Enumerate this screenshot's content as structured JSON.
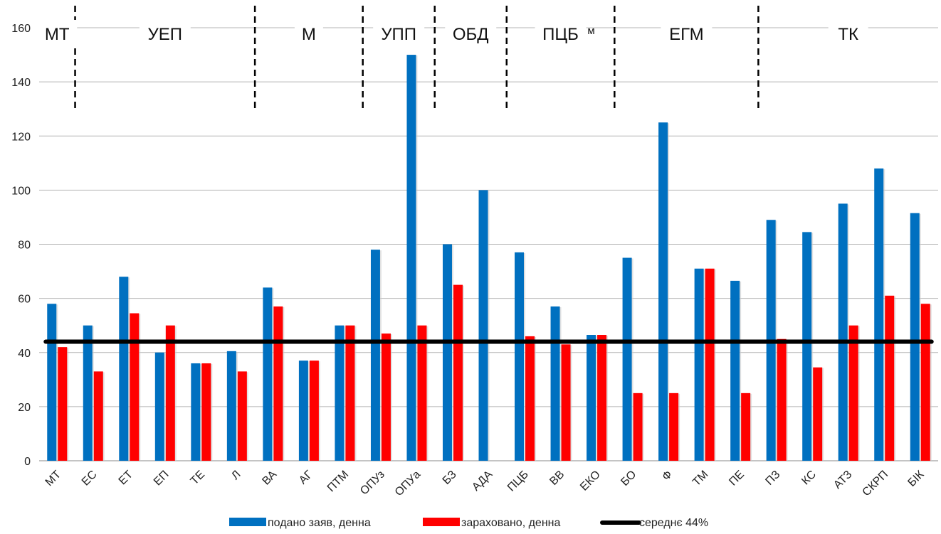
{
  "chart_data": {
    "type": "bar",
    "ylim": [
      0,
      160
    ],
    "yticks": [
      "0",
      "20",
      "40",
      "60",
      "80",
      "100",
      "120",
      "140",
      "160"
    ],
    "grid": true,
    "legend_position": "bottom",
    "categories": [
      "МТ",
      "ЕС",
      "ЕТ",
      "ЕП",
      "ТЕ",
      "Л",
      "ВА",
      "АГ",
      "ПТМ",
      "ОПУз",
      "ОПУа",
      "БЗ",
      "АДА",
      "ПЦБ",
      "ВВ",
      "ЕКО",
      "БО",
      "Ф",
      "ТМ",
      "ПЕ",
      "ПЗ",
      "КС",
      "АТЗ",
      "СКРП",
      "БІК"
    ],
    "series": [
      {
        "name": "подано заяв, денна",
        "color": "#0070C0",
        "values": [
          58,
          50,
          68,
          40,
          36,
          40.5,
          64,
          37,
          50,
          78,
          150,
          80,
          100,
          77,
          57,
          46.5,
          75,
          125,
          71,
          66.5,
          89,
          84.5,
          95,
          108,
          91.5
        ]
      },
      {
        "name": "зараховано, денна",
        "color": "#FF0000",
        "values": [
          42,
          33,
          54.5,
          50,
          36,
          33,
          57,
          37,
          50,
          47,
          50,
          65,
          0,
          46,
          43,
          46.5,
          25,
          25,
          71,
          25,
          45,
          34.5,
          50,
          61,
          58
        ]
      }
    ],
    "reference_line": {
      "name": "середнє 44%",
      "value": 44,
      "color": "#000000"
    },
    "groups": [
      {
        "label": "МТ",
        "from": 0,
        "to": 0
      },
      {
        "label": "УЕП",
        "from": 1,
        "to": 5
      },
      {
        "label": "М",
        "from": 6,
        "to": 8
      },
      {
        "label": "УПП",
        "from": 9,
        "to": 10
      },
      {
        "label": "ОБД",
        "from": 11,
        "to": 12
      },
      {
        "label": "ПЦБ",
        "from": 13,
        "to": 15
      },
      {
        "label": "ЕГМ",
        "from": 16,
        "to": 19
      },
      {
        "label": "ТК",
        "from": 20,
        "to": 24
      }
    ],
    "extra_annotation": "м"
  }
}
